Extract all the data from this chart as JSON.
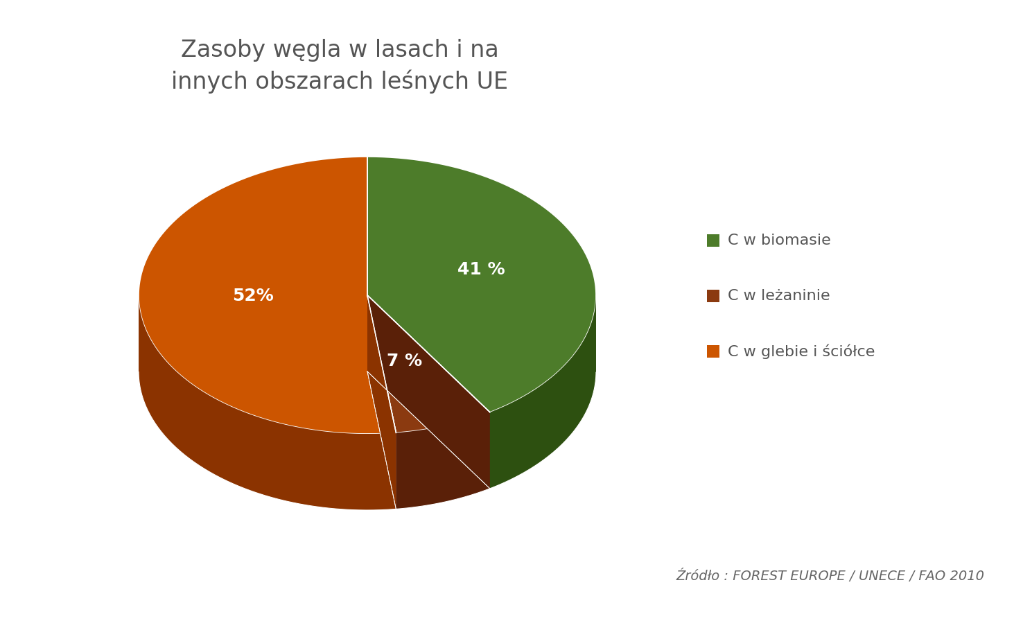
{
  "title": "Zasoby węgla w lasach i na\ninnych obszarach leśnych UE",
  "slices": [
    41,
    7,
    52
  ],
  "labels": [
    "41 %",
    "7 %",
    "52%"
  ],
  "colors_top": [
    "#4d7c2a",
    "#8b3a10",
    "#cc5500"
  ],
  "colors_side": [
    "#2d5010",
    "#5a2008",
    "#8b3300"
  ],
  "legend_labels": [
    "C w biomasie",
    "C w leżaninie",
    "C w glebie i ściółce"
  ],
  "legend_colors": [
    "#4d7c2a",
    "#8b3a10",
    "#cc5500"
  ],
  "source_text": "Źródło : FOREST EUROPE / UNECE / FAO 2010",
  "background_color": "#ffffff",
  "title_fontsize": 24,
  "label_fontsize": 18,
  "legend_fontsize": 16
}
